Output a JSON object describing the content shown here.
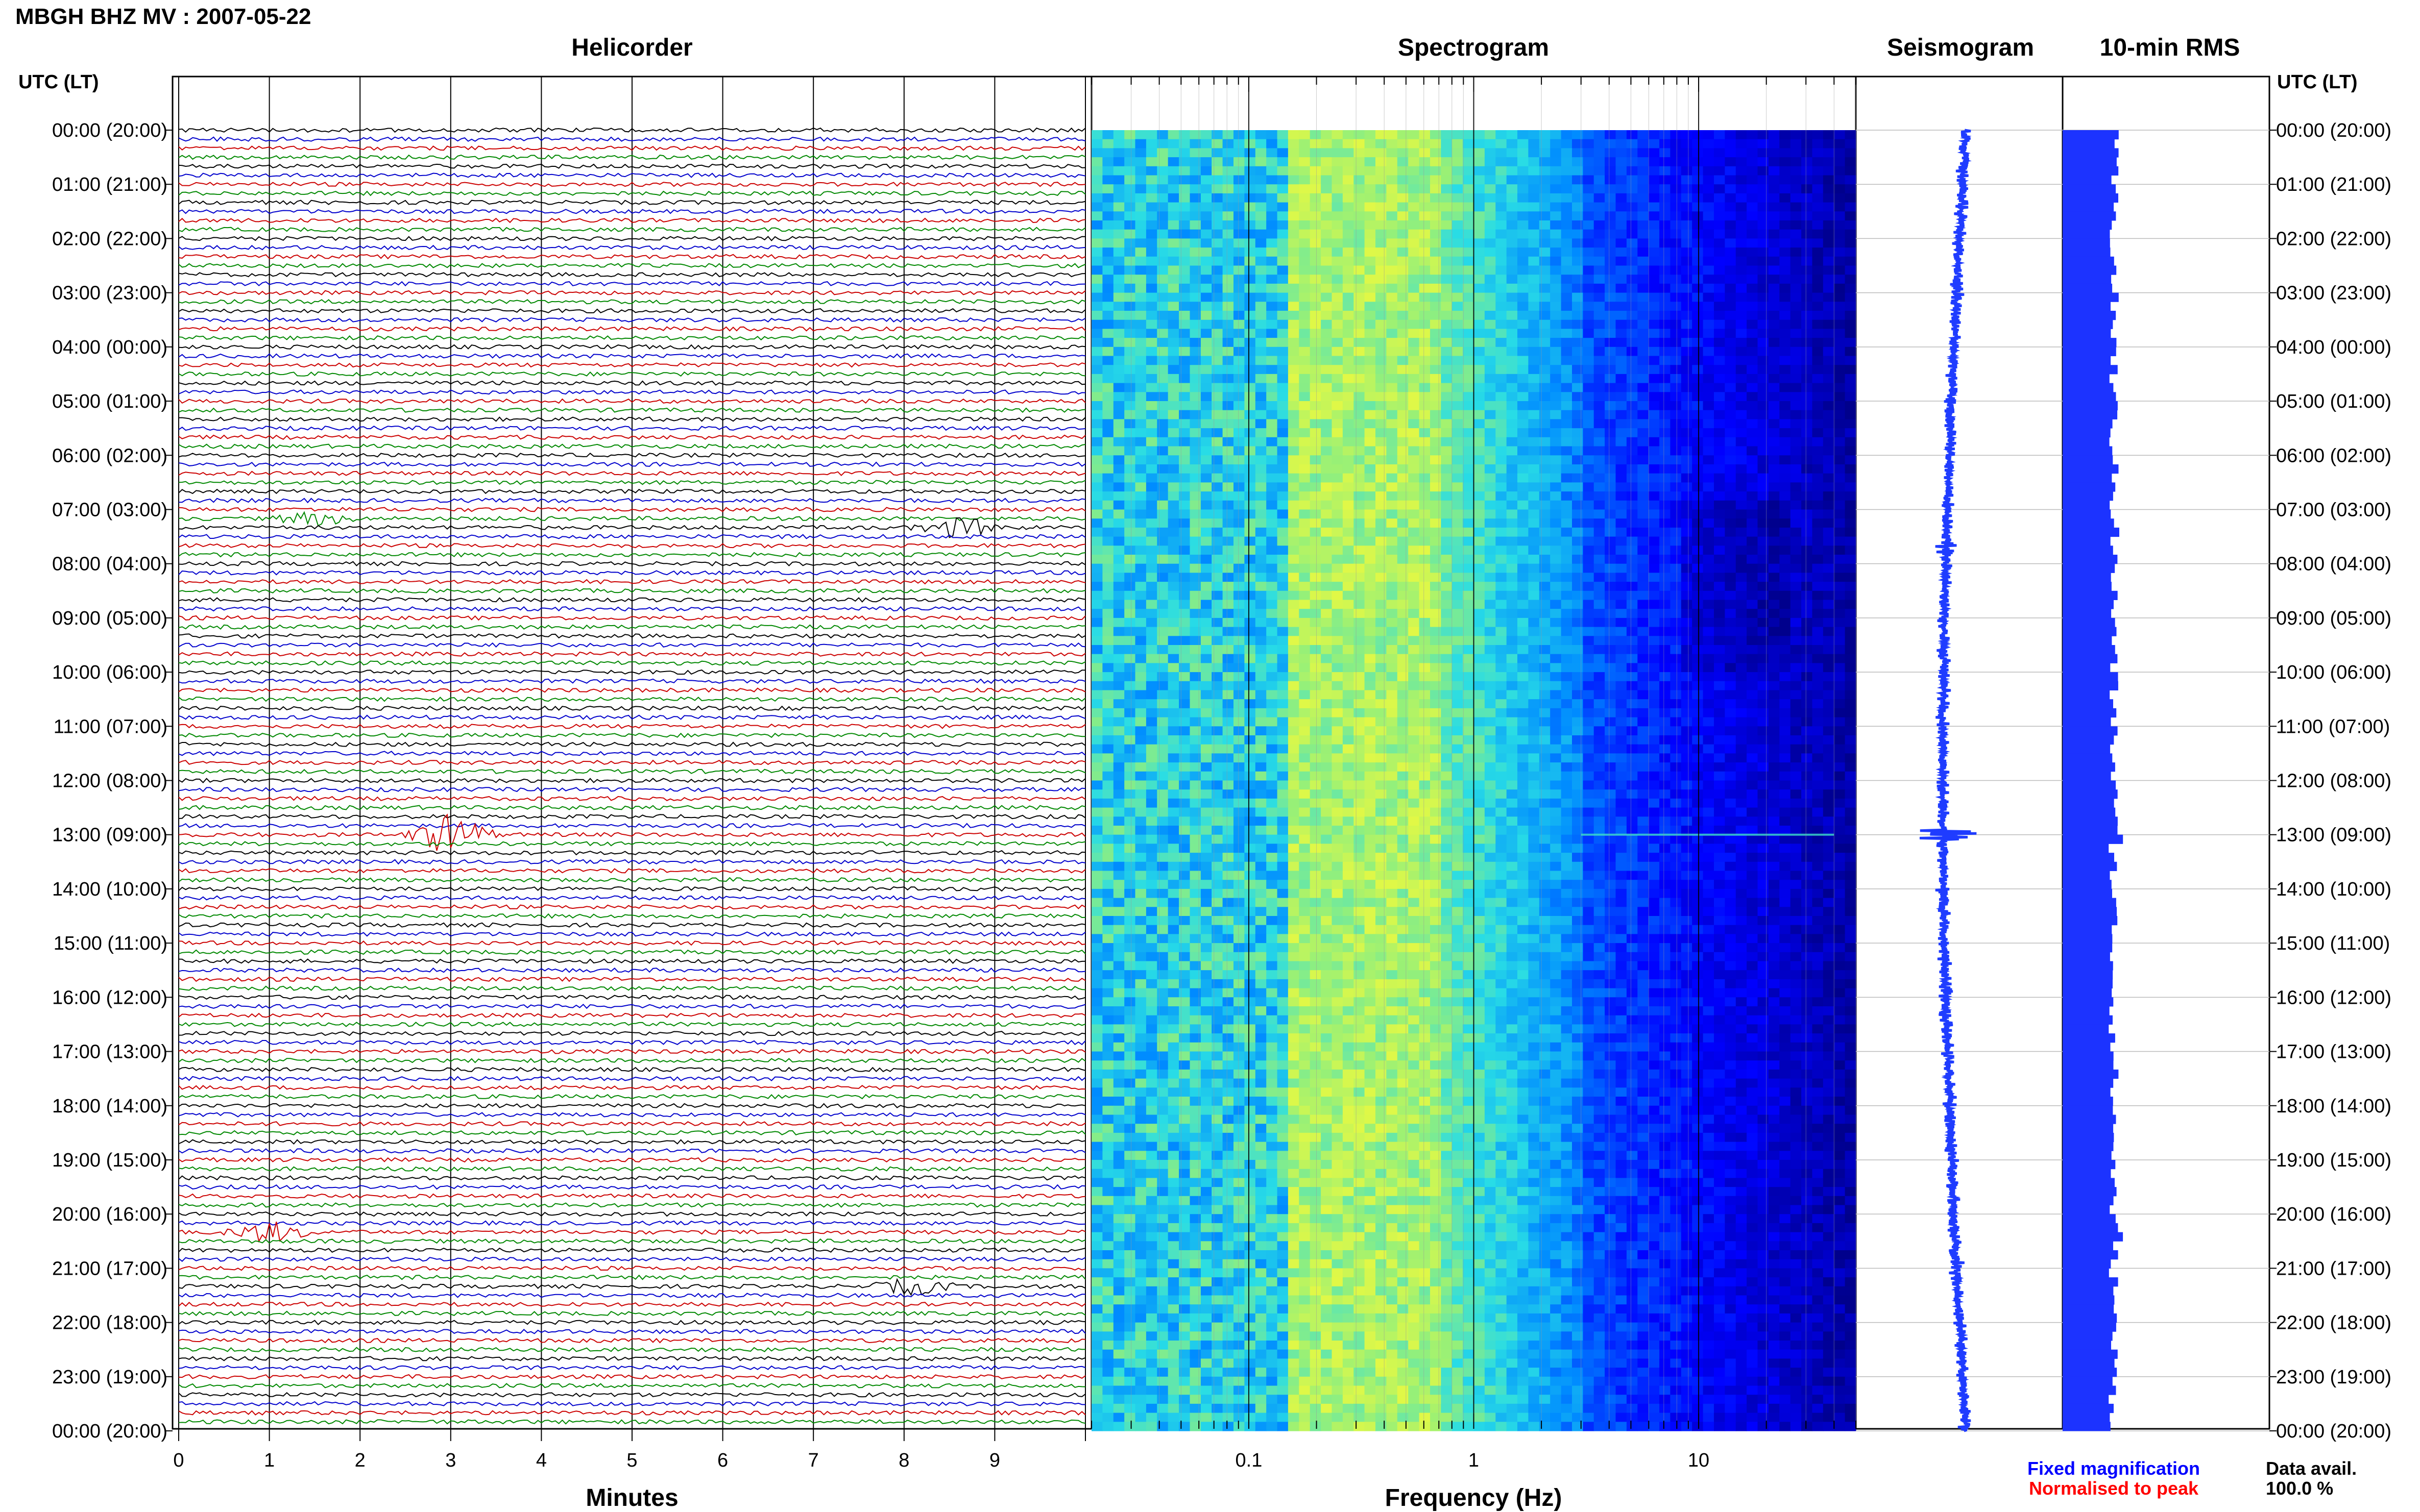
{
  "header": {
    "title": "MBGH BHZ MV : 2007-05-22"
  },
  "panels": {
    "helicorder": "Helicorder",
    "spectrogram": "Spectrogram",
    "seismogram": "Seismogram",
    "rms": "10-min RMS"
  },
  "axes": {
    "utc_label": "UTC (LT)",
    "minutes_label": "Minutes",
    "frequency_label": "Frequency (Hz)"
  },
  "legend": {
    "fixed": "Fixed magnification",
    "normalised": "Normalised to peak",
    "fixed_color": "#0000ff",
    "normalised_color": "#ff0000"
  },
  "availability": {
    "label": "Data avail.",
    "value": "100.0 %"
  },
  "colors": {
    "trace_cycle": [
      "#000000",
      "#0000cc",
      "#cc0000",
      "#008800"
    ],
    "seismogram": "#1f3cff",
    "rms_bar": "#1c33ff"
  },
  "chart_data": {
    "type": "heatmap",
    "time_ticks": [
      "00:00 (20:00)",
      "01:00 (21:00)",
      "02:00 (22:00)",
      "03:00 (23:00)",
      "04:00 (00:00)",
      "05:00 (01:00)",
      "06:00 (02:00)",
      "07:00 (03:00)",
      "08:00 (04:00)",
      "09:00 (05:00)",
      "10:00 (06:00)",
      "11:00 (07:00)",
      "12:00 (08:00)",
      "13:00 (09:00)",
      "14:00 (10:00)",
      "15:00 (11:00)",
      "16:00 (12:00)",
      "17:00 (13:00)",
      "18:00 (14:00)",
      "19:00 (15:00)",
      "20:00 (16:00)",
      "21:00 (17:00)",
      "22:00 (18:00)",
      "23:00 (19:00)",
      "00:00 (20:00)"
    ],
    "minutes_ticks": [
      "0",
      "1",
      "2",
      "3",
      "4",
      "5",
      "6",
      "7",
      "8",
      "9"
    ],
    "minutes_range": [
      0,
      10
    ],
    "frequency_ticks": [
      "0.1",
      "1",
      "10"
    ],
    "frequency_range_hz": [
      0.02,
      50
    ],
    "frequency_scale": "log",
    "helicorder_rows": 144,
    "row_minutes": 10,
    "events": [
      {
        "time_utc": "07:10",
        "minute": 1.5,
        "amplitude": 1.2
      },
      {
        "time_utc": "07:20",
        "minute": 8.6,
        "amplitude": 2.0
      },
      {
        "time_utc": "13:00",
        "minute": 3.0,
        "amplitude": 4.0
      },
      {
        "time_utc": "20:20",
        "minute": 1.0,
        "amplitude": 2.0
      },
      {
        "time_utc": "21:20",
        "minute": 8.1,
        "amplitude": 1.5
      }
    ]
  }
}
